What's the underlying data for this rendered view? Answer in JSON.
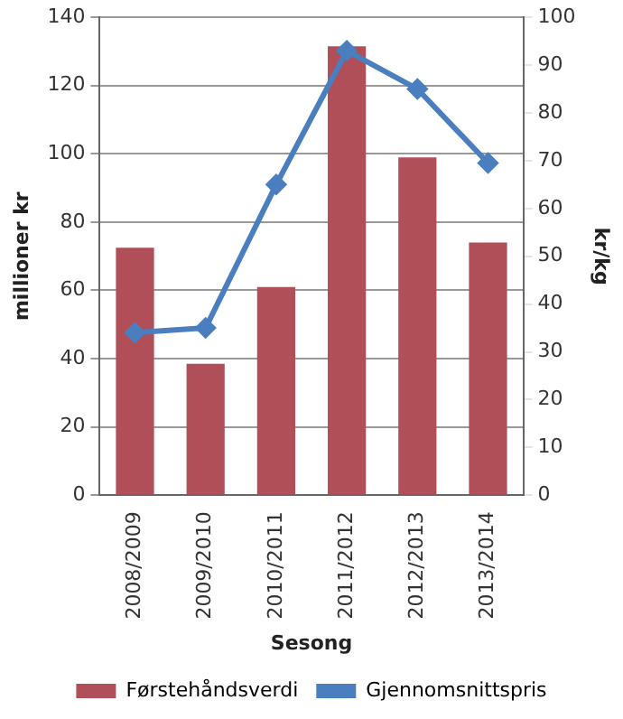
{
  "chart_data": {
    "type": "bar",
    "xlabel": "Sesong",
    "ylabel": "millioner kr",
    "y2label": "kr/kg",
    "categories": [
      "2008/2009",
      "2009/2010",
      "2010/2011",
      "2011/2012",
      "2012/2013",
      "2013/2014"
    ],
    "series": [
      {
        "name": "Førstehåndsverdi",
        "color": "#b04f58",
        "values": [
          72.5,
          38.5,
          61,
          131.5,
          99,
          74
        ]
      },
      {
        "name": "Gjennomsnittspris",
        "type": "line",
        "axis": "y2",
        "color": "#4a7ebf",
        "values": [
          34,
          35,
          65,
          93,
          85,
          69.5
        ]
      }
    ],
    "ylim": [
      0,
      140
    ],
    "yticks": [
      0,
      20,
      40,
      60,
      80,
      100,
      120,
      140
    ],
    "y2lim": [
      0,
      100
    ],
    "y2ticks": [
      0,
      10,
      20,
      30,
      40,
      50,
      60,
      70,
      80,
      90,
      100
    ],
    "grid": "y",
    "legend": "bottom",
    "marker": "diamond",
    "line_style": "solid"
  }
}
